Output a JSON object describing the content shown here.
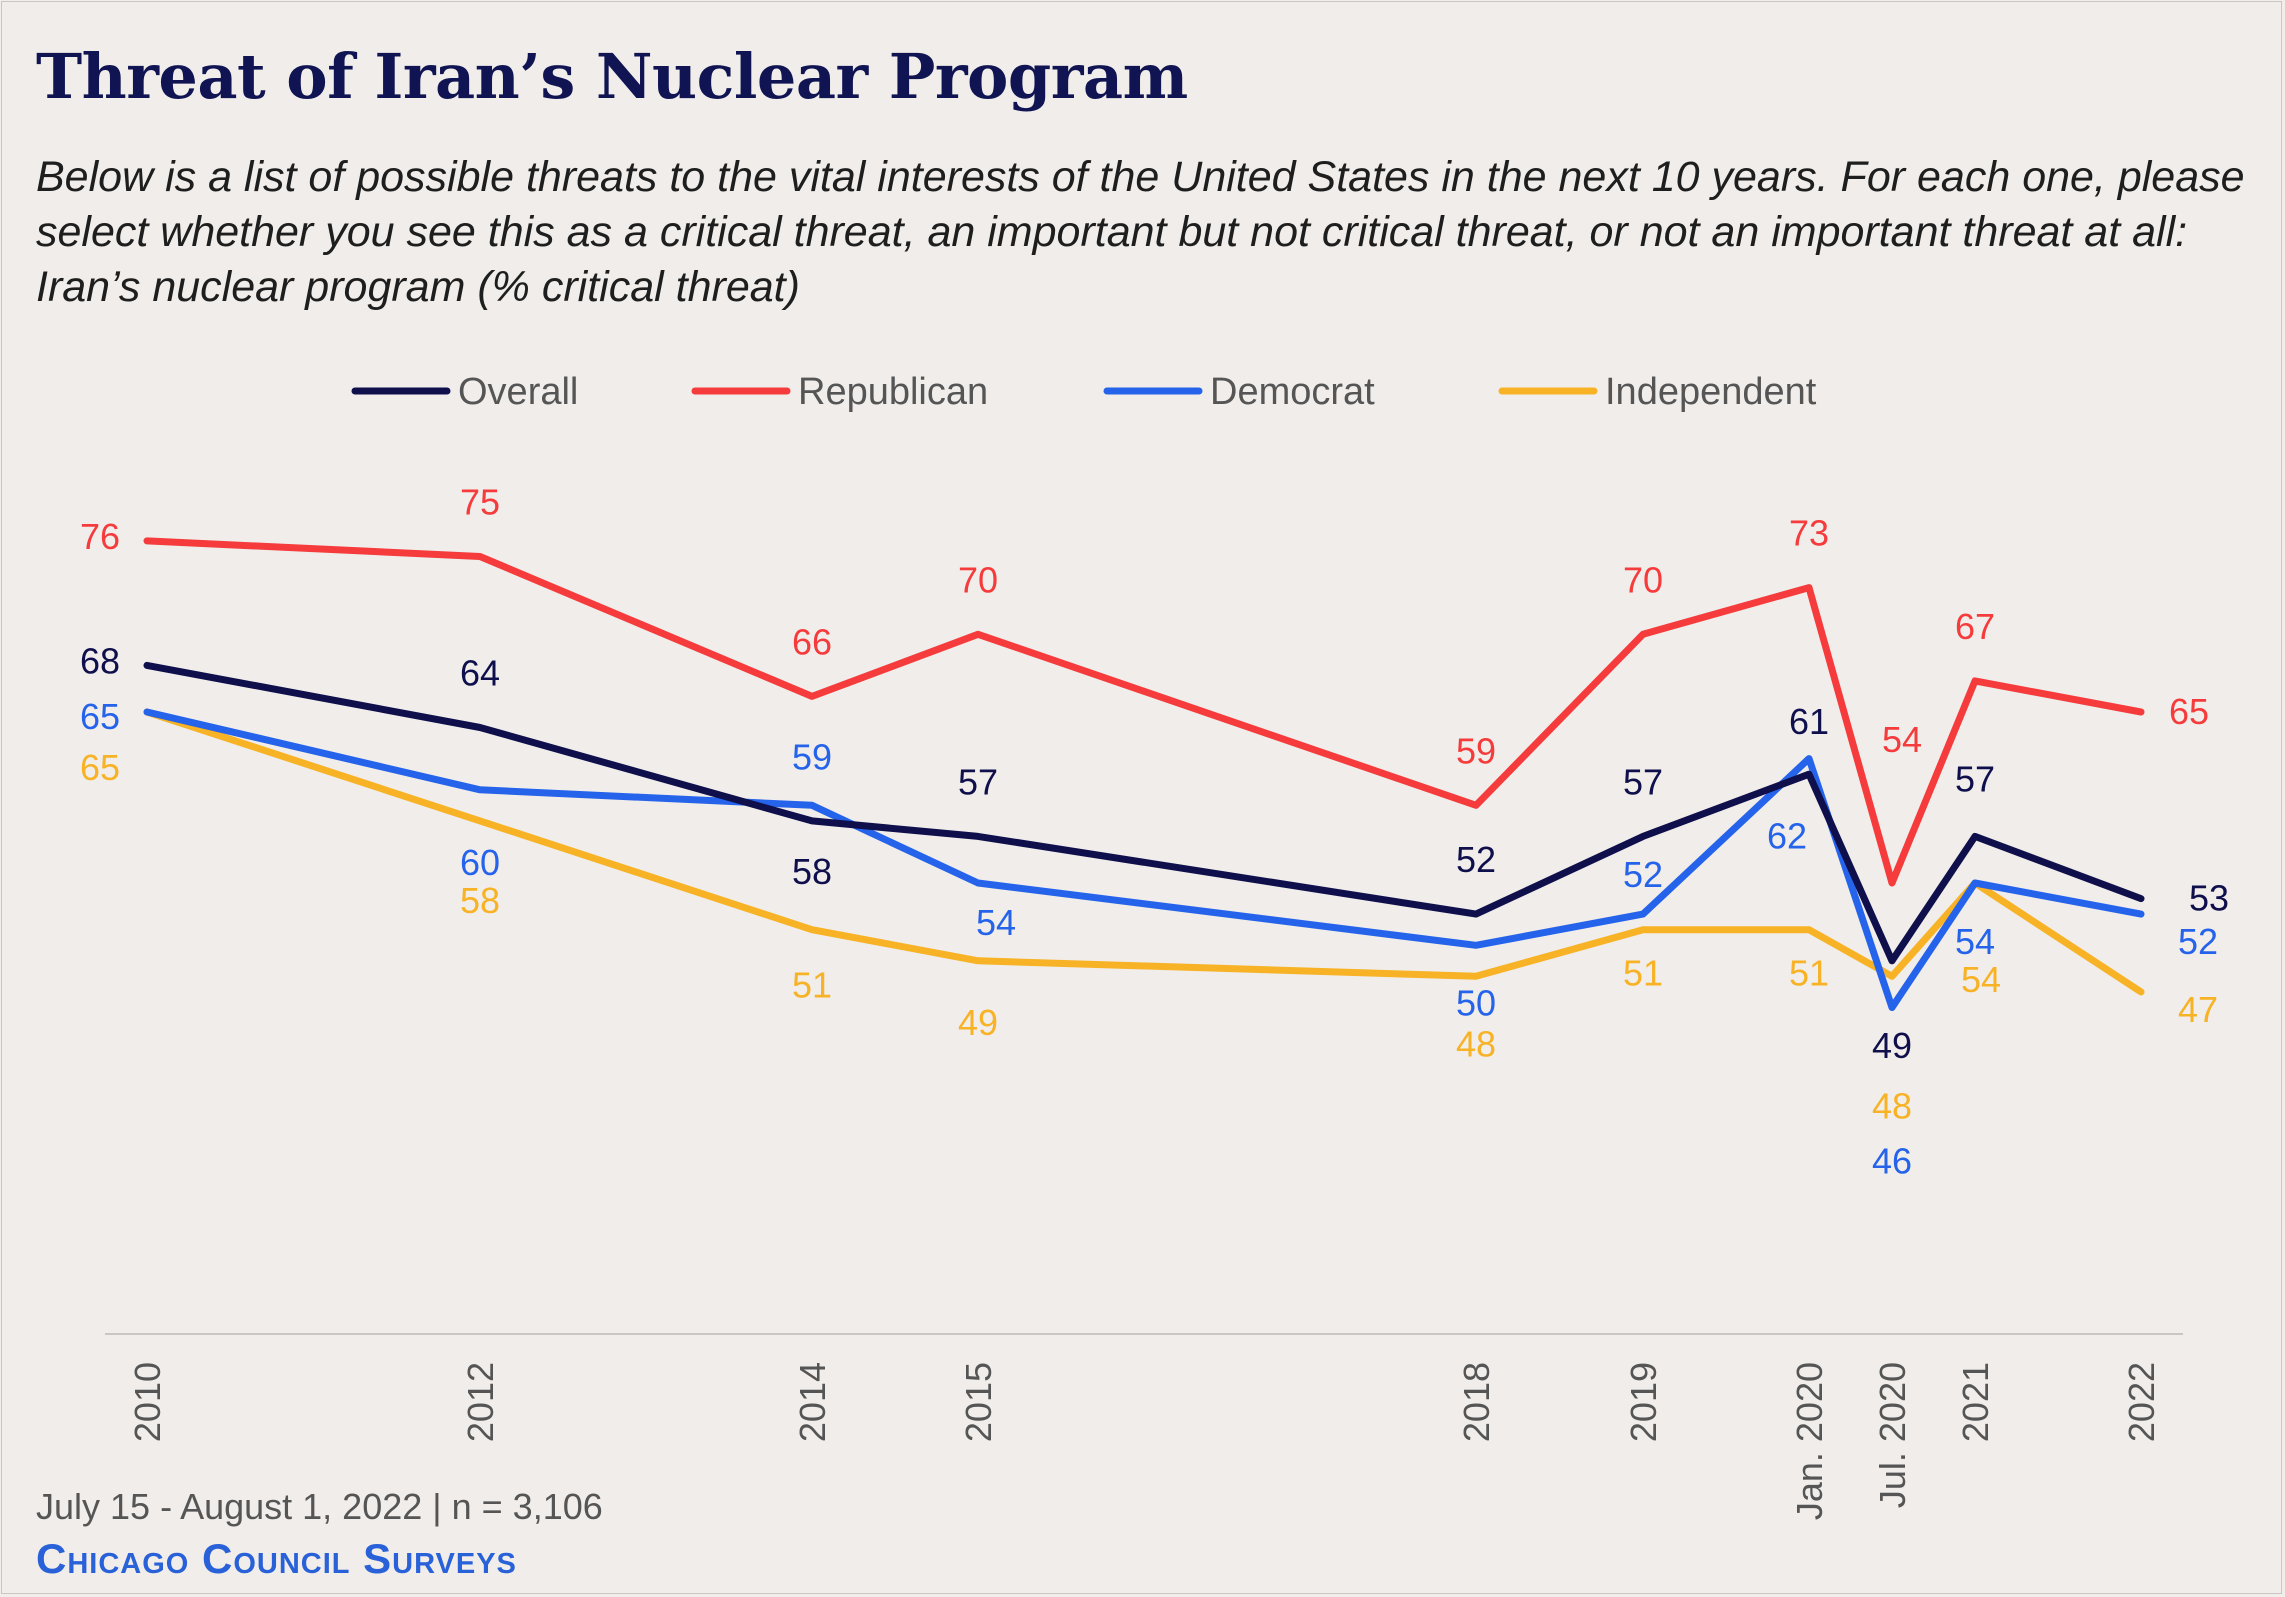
{
  "title": "Threat of Iran’s Nuclear Program",
  "subtitle": "Below is a list of possible threats to the vital interests of the United States in the next 10 years. For each one, please select whether you see this as a critical threat, an important but not critical threat, or not an important threat at all: Iran’s nuclear program (% critical threat)",
  "footer": {
    "note": "July 15 - August 1, 2022 | n = 3,106",
    "brand": "Chicago Council Surveys"
  },
  "chart_data": {
    "type": "line",
    "categories": [
      "2010",
      "2012",
      "2014",
      "2015",
      "2018",
      "2019",
      "Jan. 2020",
      "Jul. 2020",
      "2021",
      "2022"
    ],
    "series": [
      {
        "name": "Overall",
        "color": "#0f0f4c",
        "values": [
          68,
          64,
          58,
          57,
          52,
          57,
          61,
          49,
          57,
          53
        ]
      },
      {
        "name": "Republican",
        "color": "#f53b3b",
        "values": [
          76,
          75,
          66,
          70,
          59,
          70,
          73,
          54,
          67,
          65
        ]
      },
      {
        "name": "Democrat",
        "color": "#2563eb",
        "values": [
          65,
          60,
          59,
          54,
          50,
          52,
          62,
          46,
          54,
          52
        ]
      },
      {
        "name": "Independent",
        "color": "#f7b225",
        "values": [
          65,
          58,
          51,
          49,
          48,
          51,
          51,
          48,
          54,
          47
        ]
      }
    ],
    "ylim": [
      25,
      80
    ],
    "legend": "top",
    "grid": false
  }
}
